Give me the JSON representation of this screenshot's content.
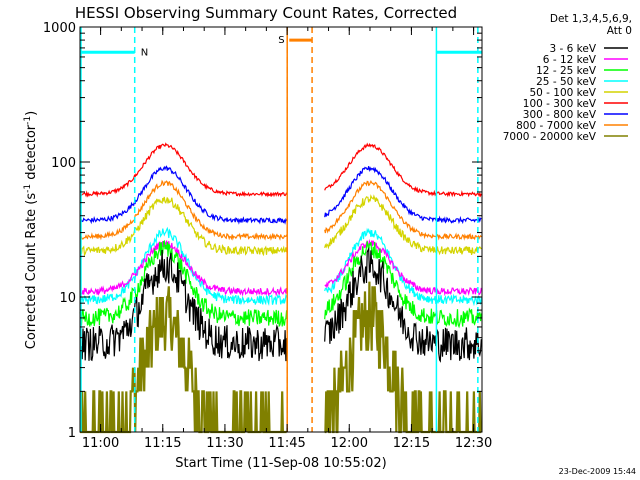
{
  "chart_data": {
    "type": "line",
    "title": "HESSI Observing Summary Count Rates, Corrected",
    "xlabel": "Start Time (11-Sep-08 10:55:02)",
    "ylabel_prefix": "Corrected Count Rate (s",
    "ylabel_sup": "-1",
    "ylabel_mid": " detector",
    "ylabel_sup2": "-1",
    "ylabel_suffix": ")",
    "y_scale": "log",
    "ylim": [
      1,
      1000
    ],
    "xlim_minutes": [
      0,
      97
    ],
    "x_ticks": [
      {
        "label": "11:00",
        "m": 4.97
      },
      {
        "label": "11:15",
        "m": 19.97
      },
      {
        "label": "11:30",
        "m": 34.97
      },
      {
        "label": "11:45",
        "m": 49.97
      },
      {
        "label": "12:00",
        "m": 64.97
      },
      {
        "label": "12:15",
        "m": 79.97
      },
      {
        "label": "12:30",
        "m": 94.97
      }
    ],
    "y_ticks": [
      {
        "label": "1",
        "v": 1
      },
      {
        "label": "10",
        "v": 10
      },
      {
        "label": "100",
        "v": 100
      },
      {
        "label": "1000",
        "v": 1000
      }
    ],
    "legend_title": [
      "Det 1,3,4,5,6,9,",
      "Att 0"
    ],
    "legend_placement": "right",
    "series": [
      {
        "name": "3 - 6 keV",
        "color": "#000000",
        "base": 4.5,
        "peak": 17,
        "noise": 0.3
      },
      {
        "name": "6 - 12 keV",
        "color": "#ff00ff",
        "base": 11,
        "peak": 25,
        "noise": 0.06
      },
      {
        "name": "12 - 25 keV",
        "color": "#00ff00",
        "base": 7,
        "peak": 23,
        "noise": 0.15
      },
      {
        "name": "25 - 50 keV",
        "color": "#00ffff",
        "base": 9.5,
        "peak": 30,
        "noise": 0.08
      },
      {
        "name": "50 - 100 keV",
        "color": "#d4d400",
        "base": 22,
        "peak": 53,
        "noise": 0.07
      },
      {
        "name": "100 - 300 keV",
        "color": "#ff0000",
        "base": 58,
        "peak": 133,
        "noise": 0.03
      },
      {
        "name": "300 - 800 keV",
        "color": "#0000ff",
        "base": 37,
        "peak": 90,
        "noise": 0.04
      },
      {
        "name": "800 - 7000 keV",
        "color": "#ff8000",
        "base": 28,
        "peak": 70,
        "noise": 0.04
      },
      {
        "name": "7000 - 20000 keV",
        "color": "#808000",
        "base": 1.0,
        "peak": 7,
        "noise": 0.6
      }
    ],
    "gaps_minutes": [
      [
        50.0,
        59.0
      ]
    ],
    "peaks_minutes": [
      20.5,
      70.0
    ],
    "annotations": [
      {
        "label": "N",
        "color": "#00ffff",
        "line_minutes": [
          13.2,
          96.0
        ],
        "bar_minutes": [
          [
            0,
            13.2
          ],
          [
            86.0,
            97.0
          ]
        ],
        "level": 650
      },
      {
        "label": "S",
        "color": "#ff8000",
        "line_minutes": [
          50.0,
          56.0
        ],
        "bar_minutes": [
          [
            50.5,
            56.0
          ]
        ],
        "level": 800
      }
    ],
    "solid_markers": [
      {
        "color": "#00ffff",
        "minutes": [
          0.0,
          86.0
        ]
      },
      {
        "color": "#ff8000",
        "minutes": [
          50.0
        ]
      }
    ],
    "grid": false
  },
  "footer": {
    "timestamp": "23-Dec-2009 15:44"
  }
}
